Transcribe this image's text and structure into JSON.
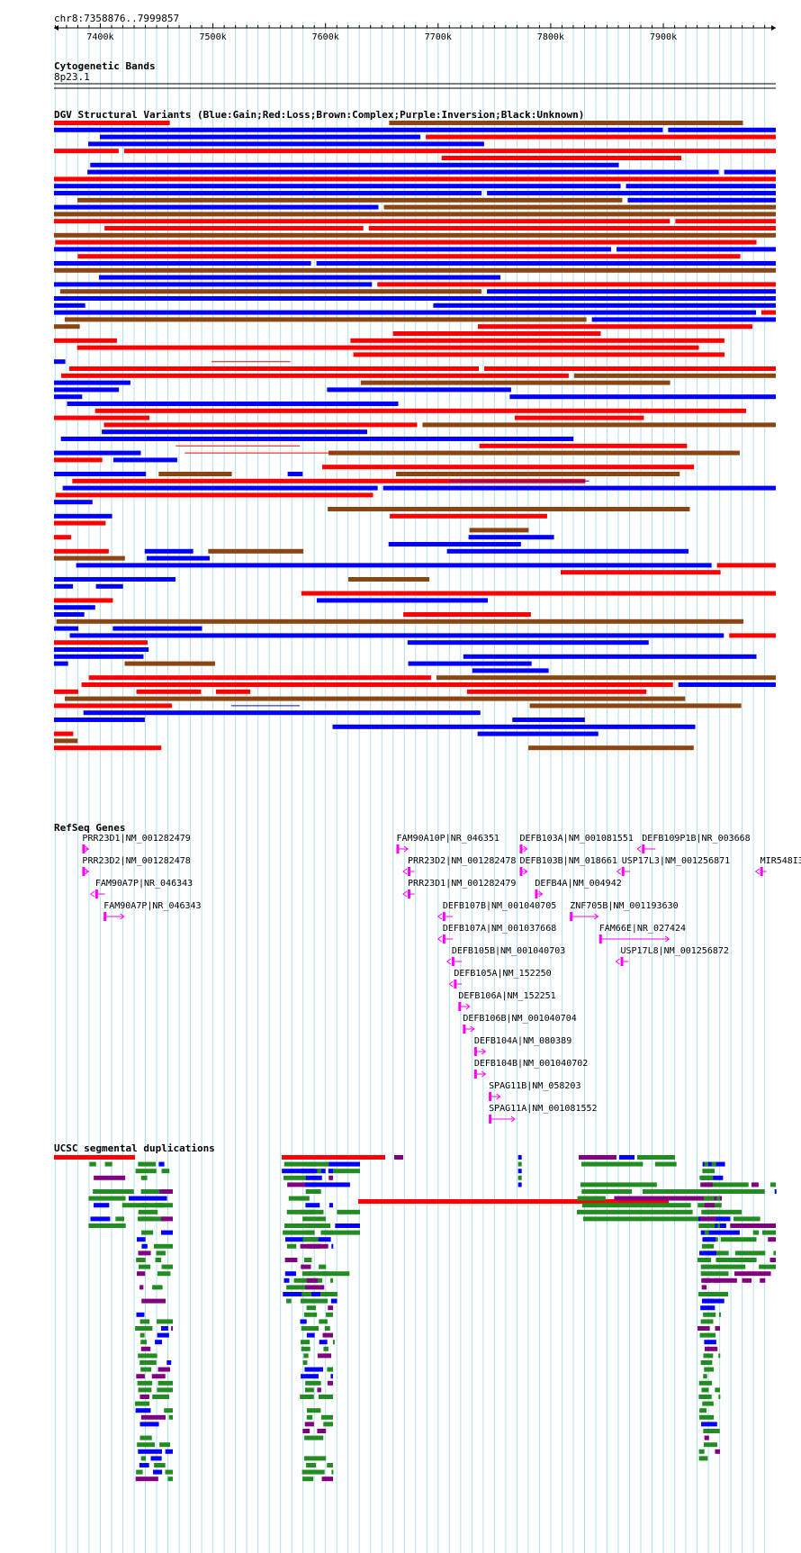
{
  "region": "chr8:7358876..7999857",
  "ruler": {
    "start": 7358876,
    "end": 7999857,
    "ticks": [
      7400000,
      7500000,
      7600000,
      7700000,
      7800000,
      7900000
    ],
    "tick_labels": [
      "7400k",
      "7500k",
      "7600k",
      "7700k",
      "7800k",
      "7900k"
    ]
  },
  "colors": {
    "gain": "#0000ff",
    "loss": "#ff0000",
    "complex": "#8b4513",
    "inversion": "#800080",
    "unknown": "#000000",
    "gene": "#ff00ff",
    "segdup_green": "#228b22",
    "segdup_purple": "#800080",
    "segdup_red": "#ff0000",
    "segdup_blue": "#0000ff",
    "gridline": "#b0e0f0"
  },
  "tracks": {
    "cytoband": {
      "title": "Cytogenetic Bands",
      "band": "8p23.1"
    },
    "dgv": {
      "title": "DGV Structural Variants (Blue:Gain;Red:Loss;Brown:Complex;Purple:Inversion;Black:Unknown)"
    },
    "refseq": {
      "title": "RefSeq Genes",
      "genes": [
        {
          "label": "PRR23D1|NM_001282479",
          "start": 7384000,
          "end": 7389500,
          "strand": "+"
        },
        {
          "label": "PRR23D2|NM_001282478",
          "start": 7384000,
          "end": 7389500,
          "strand": "+"
        },
        {
          "label": "FAM90A7P|NR_046343",
          "start": 7395500,
          "end": 7404000,
          "strand": "-"
        },
        {
          "label": "FAM90A7P|NR_046343",
          "start": 7403000,
          "end": 7421000,
          "strand": "+"
        },
        {
          "label": "FAM90A10P|NR_046351",
          "start": 7663000,
          "end": 7673000,
          "strand": "+"
        },
        {
          "label": "PRR23D2|NM_001282478",
          "start": 7673000,
          "end": 7679000,
          "strand": "-"
        },
        {
          "label": "PRR23D1|NM_001282479",
          "start": 7673000,
          "end": 7679000,
          "strand": "-"
        },
        {
          "label": "DEFB103A|NM_001081551",
          "start": 7772500,
          "end": 7779000,
          "strand": "+"
        },
        {
          "label": "DEFB103B|NM_018661",
          "start": 7772500,
          "end": 7779000,
          "strand": "+"
        },
        {
          "label": "DEFB4A|NM_004942",
          "start": 7786000,
          "end": 7792500,
          "strand": "+"
        },
        {
          "label": "DEFB109P1B|NR_003668",
          "start": 7881000,
          "end": 7893000,
          "strand": "-"
        },
        {
          "label": "USP17L3|NM_001256871",
          "start": 7863000,
          "end": 7870000,
          "strand": "-"
        },
        {
          "label": "MIR548I3",
          "start": 7986000,
          "end": 7991500,
          "strand": "-"
        },
        {
          "label": "DEFB107B|NM_001040705",
          "start": 7704000,
          "end": 7713000,
          "strand": "-"
        },
        {
          "label": "DEFB107A|NM_001037668",
          "start": 7704000,
          "end": 7713000,
          "strand": "-"
        },
        {
          "label": "DEFB105B|NM_001040703",
          "start": 7712000,
          "end": 7721000,
          "strand": "-"
        },
        {
          "label": "DEFB105A|NM_152250",
          "start": 7714000,
          "end": 7721000,
          "strand": "-"
        },
        {
          "label": "DEFB106A|NM_152251",
          "start": 7718000,
          "end": 7728000,
          "strand": "+"
        },
        {
          "label": "DEFB106B|NM_001040704",
          "start": 7722000,
          "end": 7732000,
          "strand": "+"
        },
        {
          "label": "DEFB104A|NM_080389",
          "start": 7732000,
          "end": 7742000,
          "strand": "+"
        },
        {
          "label": "DEFB104B|NM_001040702",
          "start": 7732000,
          "end": 7742000,
          "strand": "+"
        },
        {
          "label": "SPAG11B|NM_058203",
          "start": 7745000,
          "end": 7755000,
          "strand": "+"
        },
        {
          "label": "SPAG11A|NM_001081552",
          "start": 7745000,
          "end": 7768000,
          "strand": "+"
        },
        {
          "label": "ZNF705B|NM_001193630",
          "start": 7817000,
          "end": 7842000,
          "strand": "+"
        },
        {
          "label": "FAM66E|NR_027424",
          "start": 7843000,
          "end": 7905000,
          "strand": "+"
        },
        {
          "label": "USP17L8|NM_001256872",
          "start": 7862000,
          "end": 7869000,
          "strand": "-"
        }
      ]
    },
    "segdup": {
      "title": "UCSC segmental duplications"
    }
  }
}
